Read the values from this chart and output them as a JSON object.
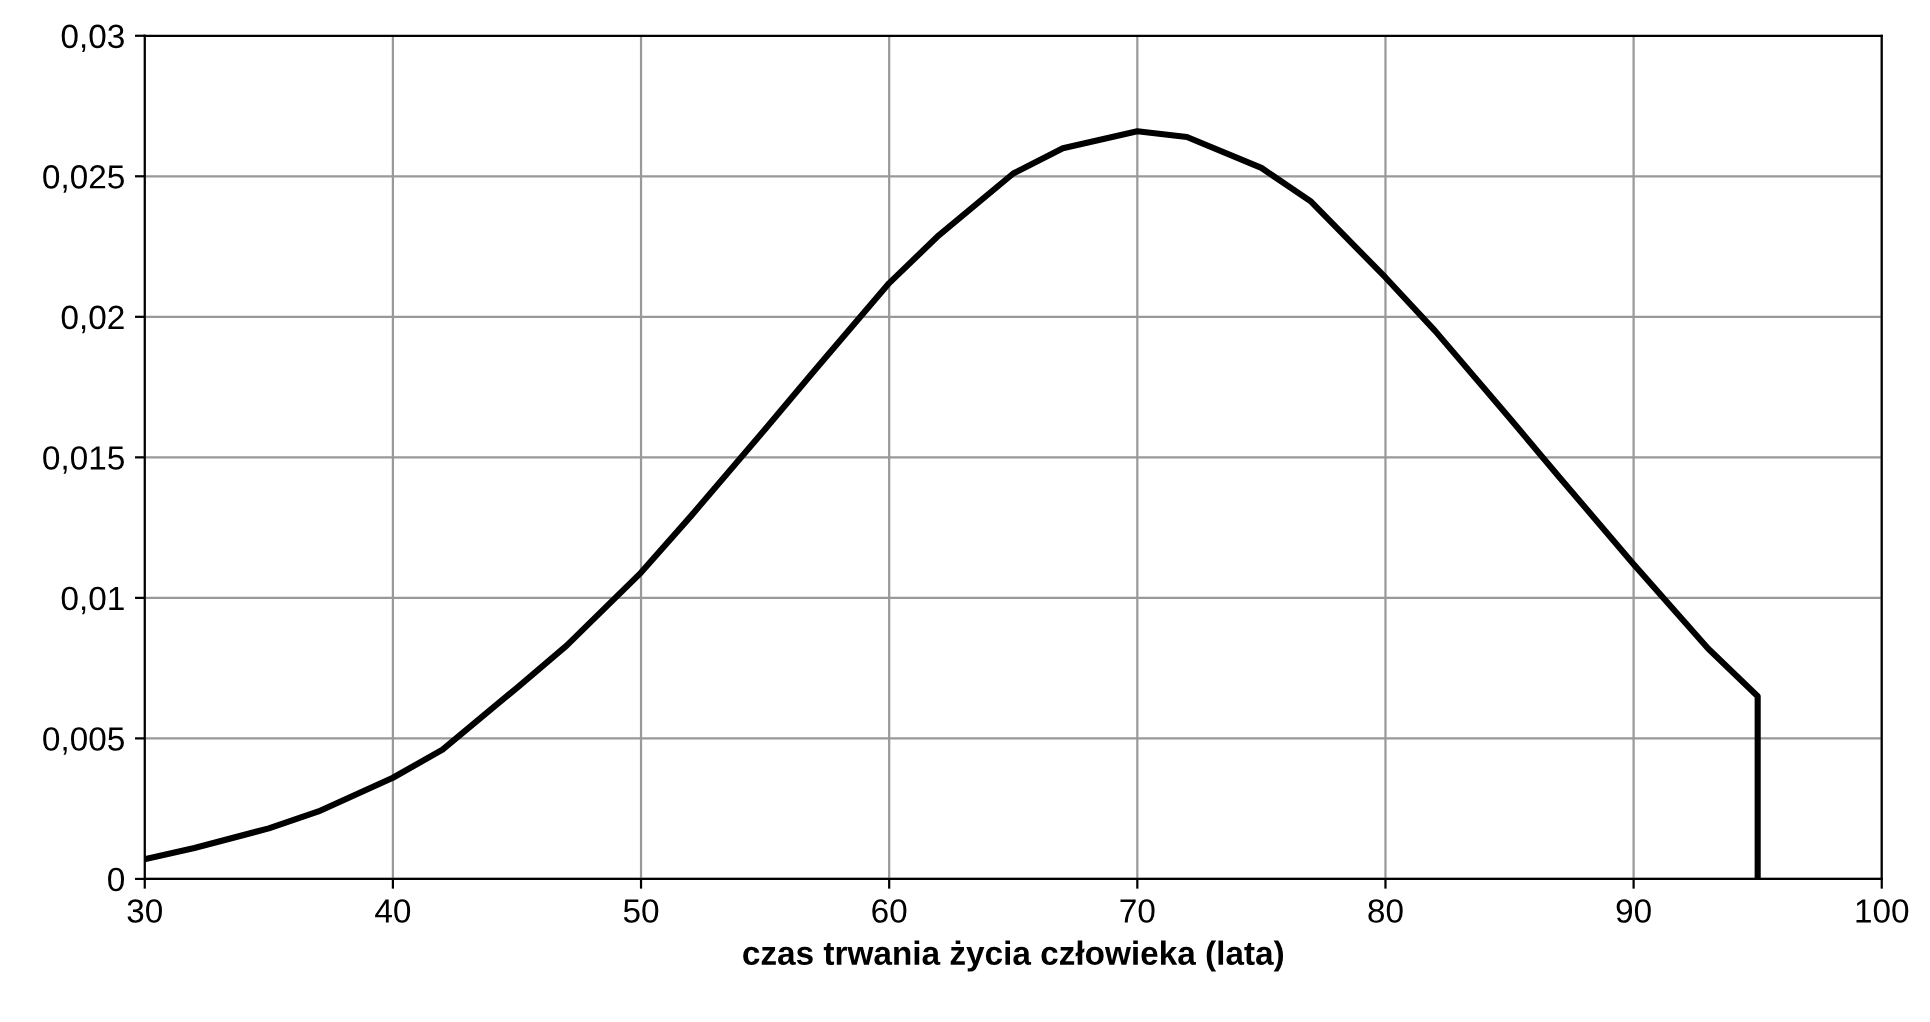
{
  "chart_data": {
    "type": "line",
    "xlabel": "czas trwania życia człowieka (lata)",
    "xlim": [
      30,
      100
    ],
    "xticks": [
      30,
      40,
      50,
      60,
      70,
      80,
      90,
      100
    ],
    "ylim": [
      0,
      0.03
    ],
    "yticks": [
      {
        "value": 0,
        "label": "0"
      },
      {
        "value": 0.005,
        "label": "0,005"
      },
      {
        "value": 0.01,
        "label": "0,01"
      },
      {
        "value": 0.015,
        "label": "0,015"
      },
      {
        "value": 0.02,
        "label": "0,02"
      },
      {
        "value": 0.025,
        "label": "0,025"
      },
      {
        "value": 0.03,
        "label": "0,03"
      }
    ],
    "grid": true,
    "marker": "none",
    "line_style": "solid",
    "series": [
      {
        "color": "#000000",
        "x": [
          30,
          32,
          35,
          37,
          40,
          42,
          45,
          47,
          50,
          52,
          55,
          57,
          60,
          62,
          65,
          67,
          70,
          72,
          75,
          77,
          80,
          82,
          85,
          87,
          90,
          93,
          95,
          95
        ],
        "values": [
          0.0007,
          0.0011,
          0.0018,
          0.0024,
          0.0036,
          0.0046,
          0.0068,
          0.0083,
          0.0109,
          0.0129,
          0.016,
          0.0181,
          0.0212,
          0.0229,
          0.0251,
          0.026,
          0.0266,
          0.0264,
          0.0253,
          0.0241,
          0.0214,
          0.0195,
          0.0164,
          0.0143,
          0.0112,
          0.0082,
          0.0065,
          0
        ]
      }
    ]
  }
}
